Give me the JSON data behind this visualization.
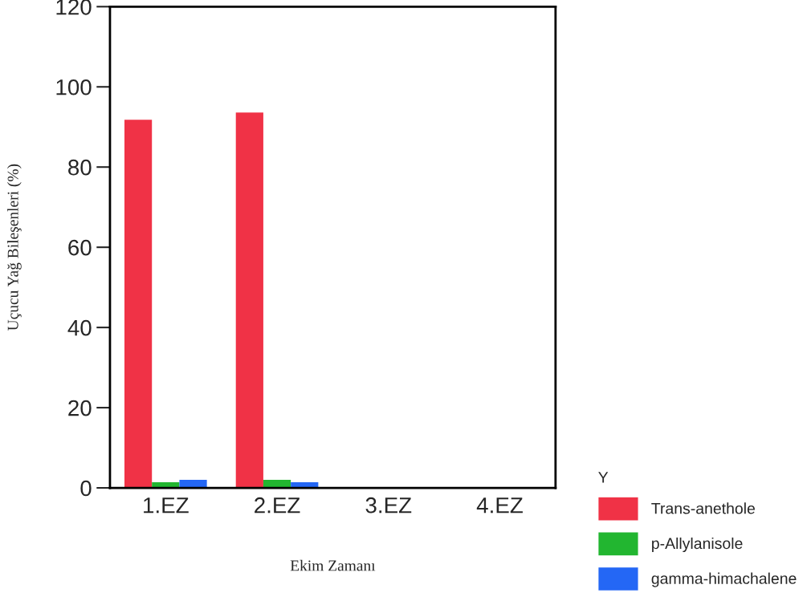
{
  "chart_data": {
    "type": "bar",
    "xlabel": "Ekim Zamanı",
    "ylabel": "Uçucu Yağ Bileşenleri (%)",
    "legend_title": "Y",
    "categories": [
      "1.EZ",
      "2.EZ",
      "3.EZ",
      "4.EZ"
    ],
    "series": [
      {
        "name": "Trans-anethole",
        "color": "#f03246",
        "values": [
          91.8,
          93.6,
          null,
          null
        ]
      },
      {
        "name": "p-Allylanisole",
        "color": "#22b630",
        "values": [
          1.4,
          2.0,
          null,
          null
        ]
      },
      {
        "name": "gamma-himachalene",
        "color": "#2467f5",
        "values": [
          2.0,
          1.4,
          null,
          null
        ]
      }
    ],
    "ylim": [
      0,
      120
    ],
    "yticks": [
      0,
      20,
      40,
      60,
      80,
      100,
      120
    ],
    "grid": false,
    "legend": "bottom right"
  }
}
